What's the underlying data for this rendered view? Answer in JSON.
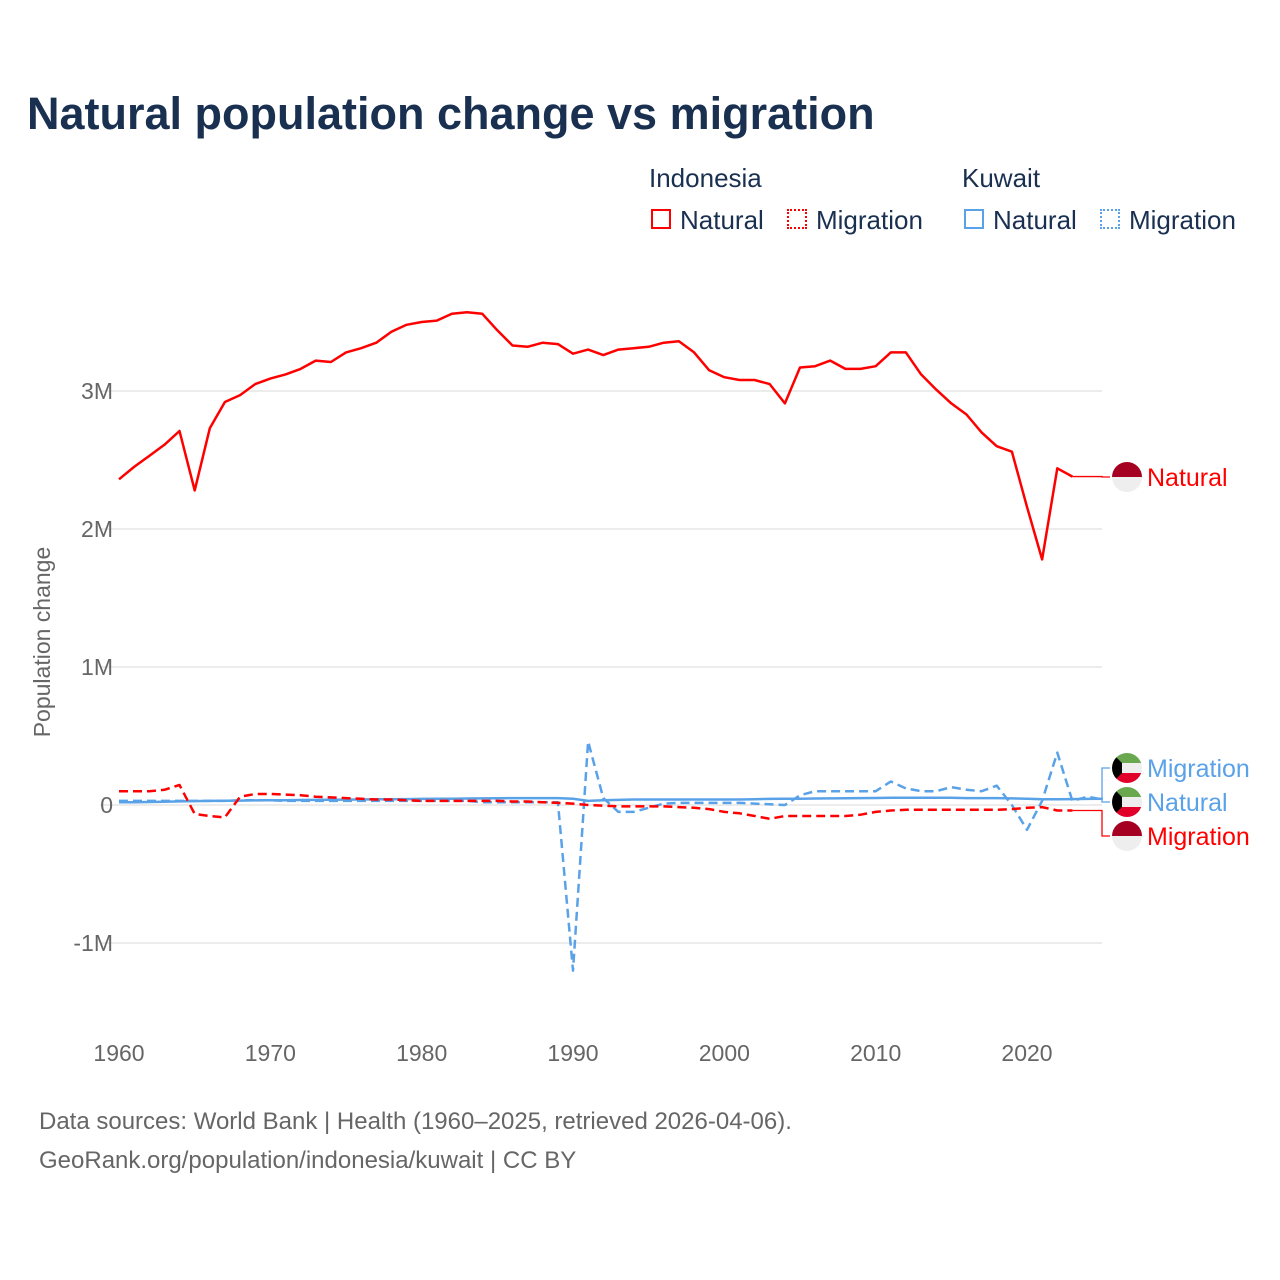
{
  "title": "Natural population change vs migration",
  "legend": {
    "groups": [
      {
        "name": "Indonesia",
        "items": [
          "Natural",
          "Migration"
        ]
      },
      {
        "name": "Kuwait",
        "items": [
          "Natural",
          "Migration"
        ]
      }
    ]
  },
  "footer": {
    "line1": "Data sources: World Bank | Health (1960–2025, retrieved 2026-04-06).",
    "line2": "GeoRank.org/population/indonesia/kuwait | CC BY"
  },
  "chart_data": {
    "type": "line",
    "title": "Natural population change vs migration",
    "xlabel": "",
    "ylabel": "Population change",
    "xlim": [
      1960,
      2025
    ],
    "ylim": [
      -1.45,
      3.9
    ],
    "x_ticks": [
      1960,
      1970,
      1980,
      1990,
      2000,
      2010,
      2020
    ],
    "y_ticks": [
      {
        "v": 3,
        "label": "3M"
      },
      {
        "v": 2,
        "label": "2M"
      },
      {
        "v": 1,
        "label": "1M"
      },
      {
        "v": 0,
        "label": "0"
      },
      {
        "v": -1,
        "label": "-1M"
      }
    ],
    "units": "millions",
    "colors": {
      "indonesia": "#ff0000",
      "kuwait": "#5aa2e8"
    },
    "series": [
      {
        "name": "Indonesia Natural",
        "country": "indonesia",
        "style": "solid",
        "end_label": "Natural",
        "start": 1960,
        "values": [
          2.36,
          2.45,
          2.53,
          2.61,
          2.71,
          2.28,
          2.73,
          2.92,
          2.97,
          3.05,
          3.09,
          3.12,
          3.16,
          3.22,
          3.21,
          3.28,
          3.31,
          3.35,
          3.43,
          3.48,
          3.5,
          3.51,
          3.56,
          3.57,
          3.56,
          3.44,
          3.33,
          3.32,
          3.35,
          3.34,
          3.27,
          3.3,
          3.26,
          3.3,
          3.31,
          3.32,
          3.35,
          3.36,
          3.28,
          3.15,
          3.1,
          3.08,
          3.08,
          3.05,
          2.91,
          3.17,
          3.18,
          3.22,
          3.16,
          3.16,
          3.18,
          3.28,
          3.28,
          3.12,
          3.01,
          2.91,
          2.83,
          2.7,
          2.6,
          2.56,
          2.16,
          1.78,
          2.44,
          2.38
        ]
      },
      {
        "name": "Indonesia Migration",
        "country": "indonesia",
        "style": "dashed",
        "end_label": "Migration",
        "start": 1960,
        "values": [
          0.1,
          0.1,
          0.1,
          0.11,
          0.145,
          -0.065,
          -0.08,
          -0.09,
          0.06,
          0.08,
          0.08,
          0.075,
          0.07,
          0.06,
          0.055,
          0.05,
          0.045,
          0.04,
          0.04,
          0.035,
          0.03,
          0.03,
          0.03,
          0.03,
          0.03,
          0.03,
          0.025,
          0.025,
          0.02,
          0.015,
          0.01,
          0.0,
          -0.005,
          -0.01,
          -0.01,
          -0.01,
          -0.01,
          -0.015,
          -0.02,
          -0.03,
          -0.05,
          -0.06,
          -0.08,
          -0.1,
          -0.08,
          -0.08,
          -0.08,
          -0.08,
          -0.08,
          -0.07,
          -0.05,
          -0.04,
          -0.035,
          -0.035,
          -0.035,
          -0.035,
          -0.035,
          -0.035,
          -0.035,
          -0.03,
          -0.02,
          -0.015,
          -0.04,
          -0.04
        ]
      },
      {
        "name": "Kuwait Natural",
        "country": "kuwait",
        "style": "solid",
        "end_label": "Natural",
        "start": 1960,
        "values": [
          0.02,
          0.02,
          0.022,
          0.024,
          0.026,
          0.028,
          0.03,
          0.031,
          0.032,
          0.033,
          0.034,
          0.035,
          0.036,
          0.037,
          0.038,
          0.039,
          0.04,
          0.041,
          0.042,
          0.043,
          0.044,
          0.045,
          0.046,
          0.047,
          0.048,
          0.049,
          0.05,
          0.05,
          0.05,
          0.05,
          0.045,
          0.03,
          0.035,
          0.037,
          0.04,
          0.04,
          0.04,
          0.04,
          0.04,
          0.04,
          0.04,
          0.04,
          0.042,
          0.044,
          0.045,
          0.046,
          0.047,
          0.048,
          0.049,
          0.05,
          0.051,
          0.052,
          0.053,
          0.053,
          0.053,
          0.052,
          0.05,
          0.05,
          0.05,
          0.048,
          0.045,
          0.042,
          0.042,
          0.043,
          0.044,
          0.045
        ]
      },
      {
        "name": "Kuwait Migration",
        "country": "kuwait",
        "style": "dashed",
        "end_label": "Migration",
        "start": 1960,
        "values": [
          0.03,
          0.03,
          0.03,
          0.03,
          0.03,
          0.03,
          0.03,
          0.03,
          0.035,
          0.035,
          0.035,
          0.03,
          0.03,
          0.03,
          0.03,
          0.03,
          0.03,
          0.03,
          0.03,
          0.03,
          0.03,
          0.03,
          0.03,
          0.03,
          0.02,
          0.02,
          0.02,
          0.02,
          0.02,
          0.02,
          -1.2,
          0.46,
          0.05,
          -0.05,
          -0.05,
          -0.02,
          0.01,
          0.015,
          0.015,
          0.015,
          0.015,
          0.015,
          0.01,
          0.005,
          0.0,
          0.07,
          0.1,
          0.1,
          0.1,
          0.1,
          0.1,
          0.17,
          0.12,
          0.1,
          0.1,
          0.13,
          0.11,
          0.1,
          0.14,
          0.0,
          -0.18,
          0.03,
          0.38,
          0.03,
          0.06,
          0.04
        ]
      }
    ]
  }
}
